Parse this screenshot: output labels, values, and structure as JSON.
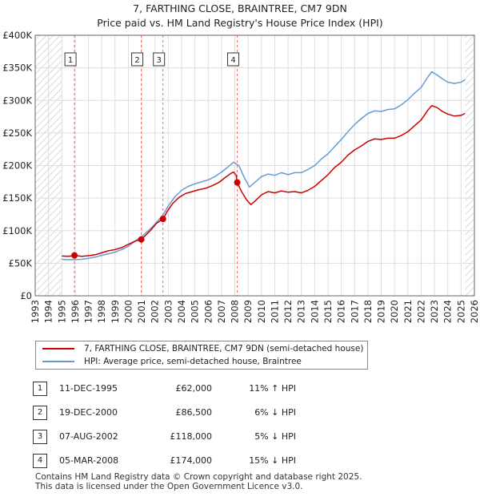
{
  "title": {
    "line1": "7, FARTHING CLOSE, BRAINTREE, CM7 9DN",
    "line2": "Price paid vs. HM Land Registry's House Price Index (HPI)"
  },
  "colors": {
    "price": "#cc0000",
    "hpi": "#6a9ad4",
    "hatch": "#cccccc",
    "grid": "#dddddd",
    "vline": "#e07070"
  },
  "chart_data": {
    "type": "line",
    "xlim": [
      1993,
      2026
    ],
    "ylim": [
      0,
      400000
    ],
    "x_ticks": [
      "1993",
      "1994",
      "1995",
      "1996",
      "1997",
      "1998",
      "1999",
      "2000",
      "2001",
      "2002",
      "2003",
      "2004",
      "2005",
      "2006",
      "2007",
      "2008",
      "2009",
      "2010",
      "2011",
      "2012",
      "2013",
      "2014",
      "2015",
      "2016",
      "2017",
      "2018",
      "2019",
      "2020",
      "2021",
      "2022",
      "2023",
      "2024",
      "2025",
      "2026"
    ],
    "y_ticks": [
      {
        "value": 0,
        "label": "£0"
      },
      {
        "value": 50000,
        "label": "£50K"
      },
      {
        "value": 100000,
        "label": "£100K"
      },
      {
        "value": 150000,
        "label": "£150K"
      },
      {
        "value": 200000,
        "label": "£200K"
      },
      {
        "value": 250000,
        "label": "£250K"
      },
      {
        "value": 300000,
        "label": "£300K"
      },
      {
        "value": 350000,
        "label": "£350K"
      },
      {
        "value": 400000,
        "label": "£400K"
      }
    ],
    "hatched_ranges": [
      [
        1993,
        1995.0
      ],
      [
        2025.3,
        2026
      ]
    ],
    "series": [
      {
        "name": "7, FARTHING CLOSE, BRAINTREE, CM7 9DN (semi-detached house)",
        "color": "#cc0000",
        "points": [
          [
            1995.0,
            61000
          ],
          [
            1995.5,
            60500
          ],
          [
            1995.95,
            62000
          ],
          [
            1996.5,
            60500
          ],
          [
            1997,
            61500
          ],
          [
            1997.5,
            63000
          ],
          [
            1998,
            66000
          ],
          [
            1998.5,
            69000
          ],
          [
            1999,
            71000
          ],
          [
            1999.5,
            74000
          ],
          [
            2000,
            79000
          ],
          [
            2000.5,
            84000
          ],
          [
            2000.97,
            86500
          ],
          [
            2001.3,
            93000
          ],
          [
            2001.7,
            101000
          ],
          [
            2002.1,
            111000
          ],
          [
            2002.6,
            118000
          ],
          [
            2002.9,
            129000
          ],
          [
            2003.3,
            141000
          ],
          [
            2003.8,
            151000
          ],
          [
            2004.3,
            157000
          ],
          [
            2004.8,
            160000
          ],
          [
            2005.3,
            163000
          ],
          [
            2005.8,
            165000
          ],
          [
            2006.3,
            169000
          ],
          [
            2006.8,
            174000
          ],
          [
            2007.3,
            182000
          ],
          [
            2007.7,
            188000
          ],
          [
            2007.9,
            190000
          ],
          [
            2008.1,
            185000
          ],
          [
            2008.18,
            174000
          ],
          [
            2008.5,
            160000
          ],
          [
            2008.9,
            147000
          ],
          [
            2009.2,
            140000
          ],
          [
            2009.5,
            145000
          ],
          [
            2010.0,
            155000
          ],
          [
            2010.5,
            160000
          ],
          [
            2011.0,
            158000
          ],
          [
            2011.5,
            161000
          ],
          [
            2012.0,
            159000
          ],
          [
            2012.5,
            160000
          ],
          [
            2013.0,
            158000
          ],
          [
            2013.5,
            162000
          ],
          [
            2014.0,
            168000
          ],
          [
            2014.5,
            177000
          ],
          [
            2015.0,
            186000
          ],
          [
            2015.5,
            197000
          ],
          [
            2016.0,
            205000
          ],
          [
            2016.5,
            216000
          ],
          [
            2017.0,
            224000
          ],
          [
            2017.5,
            230000
          ],
          [
            2018.0,
            237000
          ],
          [
            2018.5,
            241000
          ],
          [
            2019.0,
            240000
          ],
          [
            2019.5,
            242000
          ],
          [
            2020.0,
            242000
          ],
          [
            2020.5,
            246000
          ],
          [
            2021.0,
            252000
          ],
          [
            2021.5,
            261000
          ],
          [
            2022.0,
            270000
          ],
          [
            2022.5,
            285000
          ],
          [
            2022.8,
            292000
          ],
          [
            2023.2,
            289000
          ],
          [
            2023.6,
            283000
          ],
          [
            2024.0,
            279000
          ],
          [
            2024.5,
            276000
          ],
          [
            2025.0,
            277000
          ],
          [
            2025.3,
            280000
          ]
        ]
      },
      {
        "name": "HPI: Average price, semi-detached house, Braintree",
        "color": "#6a9ad4",
        "points": [
          [
            1995.0,
            56000
          ],
          [
            1995.5,
            55500
          ],
          [
            1996.0,
            55500
          ],
          [
            1996.5,
            56000
          ],
          [
            1997,
            57500
          ],
          [
            1997.5,
            59500
          ],
          [
            1998,
            62000
          ],
          [
            1998.5,
            64500
          ],
          [
            1999,
            67000
          ],
          [
            1999.5,
            71000
          ],
          [
            2000,
            76000
          ],
          [
            2000.5,
            84000
          ],
          [
            2001.0,
            91000
          ],
          [
            2001.5,
            100000
          ],
          [
            2002.0,
            110000
          ],
          [
            2002.6,
            124000
          ],
          [
            2003.0,
            138000
          ],
          [
            2003.5,
            152000
          ],
          [
            2004.0,
            162000
          ],
          [
            2004.5,
            168000
          ],
          [
            2005.0,
            172000
          ],
          [
            2005.5,
            175000
          ],
          [
            2006.0,
            178000
          ],
          [
            2006.5,
            183000
          ],
          [
            2007.0,
            190000
          ],
          [
            2007.5,
            198000
          ],
          [
            2007.9,
            205000
          ],
          [
            2008.3,
            200000
          ],
          [
            2008.7,
            182000
          ],
          [
            2009.1,
            167000
          ],
          [
            2009.5,
            174000
          ],
          [
            2010.0,
            183000
          ],
          [
            2010.5,
            187000
          ],
          [
            2011.0,
            185000
          ],
          [
            2011.5,
            189000
          ],
          [
            2012.0,
            186000
          ],
          [
            2012.5,
            189000
          ],
          [
            2013.0,
            189000
          ],
          [
            2013.5,
            194000
          ],
          [
            2014.0,
            200000
          ],
          [
            2014.5,
            210000
          ],
          [
            2015.0,
            218000
          ],
          [
            2015.5,
            229000
          ],
          [
            2016.0,
            240000
          ],
          [
            2016.5,
            252000
          ],
          [
            2017.0,
            263000
          ],
          [
            2017.5,
            272000
          ],
          [
            2018.0,
            280000
          ],
          [
            2018.5,
            284000
          ],
          [
            2019.0,
            283000
          ],
          [
            2019.5,
            286000
          ],
          [
            2020.0,
            287000
          ],
          [
            2020.5,
            293000
          ],
          [
            2021.0,
            301000
          ],
          [
            2021.5,
            311000
          ],
          [
            2022.0,
            320000
          ],
          [
            2022.5,
            336000
          ],
          [
            2022.8,
            344000
          ],
          [
            2023.2,
            339000
          ],
          [
            2023.6,
            333000
          ],
          [
            2024.0,
            328000
          ],
          [
            2024.5,
            326000
          ],
          [
            2025.0,
            328000
          ],
          [
            2025.3,
            332000
          ]
        ]
      }
    ],
    "sales": [
      {
        "num": "1",
        "x": 1995.95,
        "price": 62000
      },
      {
        "num": "2",
        "x": 2000.97,
        "price": 86500
      },
      {
        "num": "3",
        "x": 2002.6,
        "price": 118000
      },
      {
        "num": "4",
        "x": 2008.18,
        "price": 174000
      }
    ]
  },
  "legend": {
    "price_label": "7, FARTHING CLOSE, BRAINTREE, CM7 9DN (semi-detached house)",
    "hpi_label": "HPI: Average price, semi-detached house, Braintree"
  },
  "sales_table": [
    {
      "num": "1",
      "date": "11-DEC-1995",
      "price": "£62,000",
      "hpi": "11% ↑ HPI"
    },
    {
      "num": "2",
      "date": "19-DEC-2000",
      "price": "£86,500",
      "hpi": "6% ↓ HPI"
    },
    {
      "num": "3",
      "date": "07-AUG-2002",
      "price": "£118,000",
      "hpi": "5% ↓ HPI"
    },
    {
      "num": "4",
      "date": "05-MAR-2008",
      "price": "£174,000",
      "hpi": "15% ↓ HPI"
    }
  ],
  "footer": {
    "line1": "Contains HM Land Registry data © Crown copyright and database right 2025.",
    "line2": "This data is licensed under the Open Government Licence v3.0."
  }
}
